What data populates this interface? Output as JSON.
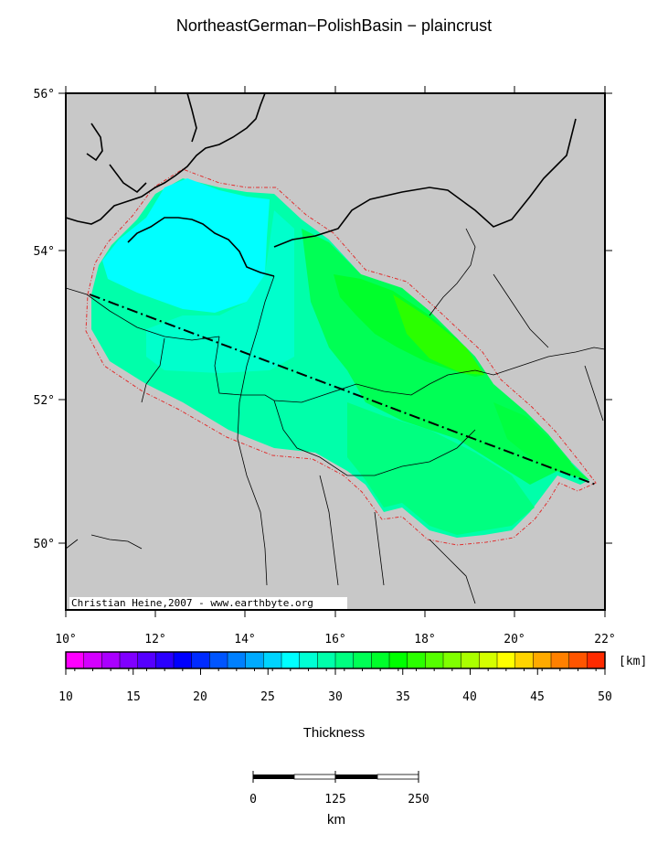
{
  "title": "NortheastGerman−PolishBasin − plaincrust",
  "map": {
    "lon_labels": [
      "10°",
      "12°",
      "14°",
      "16°",
      "18°",
      "20°",
      "22°"
    ],
    "lat_labels": [
      "56°",
      "54°",
      "52°",
      "50°"
    ],
    "credit": "Christian Heine,2007 - www.earthbyte.org",
    "land_color": "#c8c8c8",
    "basin_outline_color": "#e03030"
  },
  "colorbar": {
    "unit": "[km]",
    "tick_labels": [
      "10",
      "15",
      "20",
      "25",
      "30",
      "35",
      "40",
      "45",
      "50"
    ],
    "title": "Thickness",
    "colors": [
      "#ff00ff",
      "#d400ff",
      "#aa00ff",
      "#8000ff",
      "#5500ff",
      "#2b00ff",
      "#0000ff",
      "#002bff",
      "#0055ff",
      "#0080ff",
      "#00aaff",
      "#00d4ff",
      "#00ffff",
      "#00ffd4",
      "#00ffaa",
      "#00ff80",
      "#00ff55",
      "#00ff2b",
      "#00ff00",
      "#2bff00",
      "#55ff00",
      "#80ff00",
      "#aaff00",
      "#d4ff00",
      "#ffff00",
      "#ffd400",
      "#ffaa00",
      "#ff8000",
      "#ff5500",
      "#ff2b00"
    ]
  },
  "scalebar": {
    "labels": [
      "0",
      "125",
      "250"
    ],
    "unit": "km"
  }
}
